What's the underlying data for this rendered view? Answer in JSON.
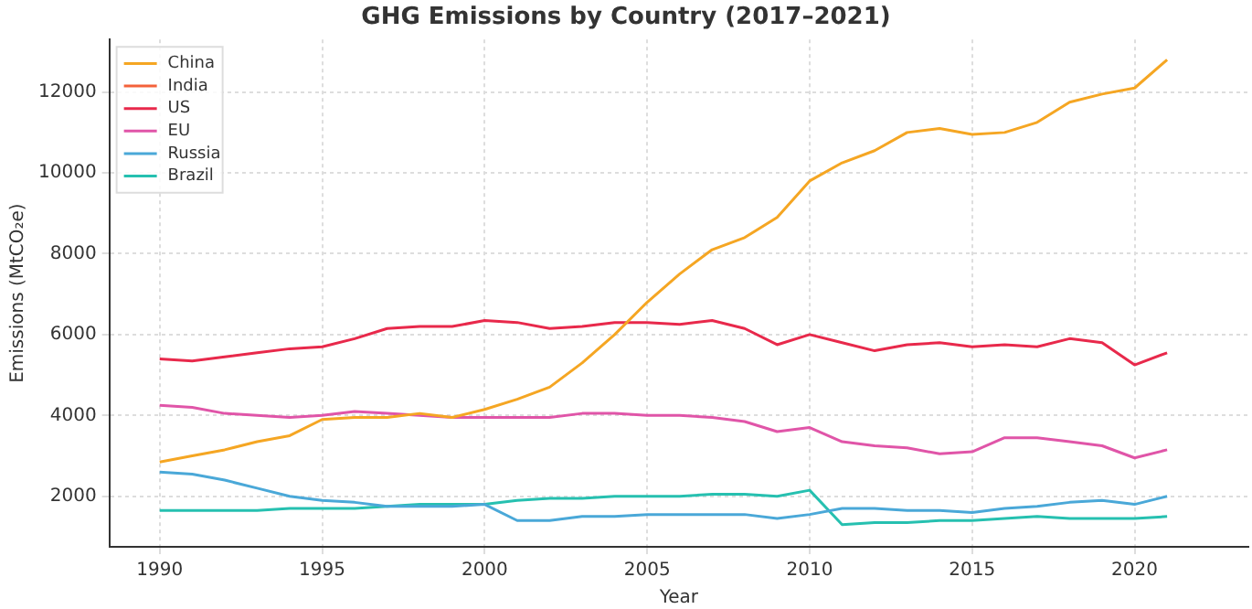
{
  "chart_data": {
    "type": "line",
    "title": "GHG Emissions by Country (2017–2021)",
    "xlabel": "Year",
    "ylabel": "Emissions (MtCO₂e)",
    "x": [
      1990,
      1991,
      1992,
      1993,
      1994,
      1995,
      1996,
      1997,
      1998,
      1999,
      2000,
      2001,
      2002,
      2003,
      2004,
      2005,
      2006,
      2007,
      2008,
      2009,
      2010,
      2011,
      2012,
      2013,
      2014,
      2015,
      2016,
      2017,
      2018,
      2019,
      2020,
      2021
    ],
    "xlim": [
      1988.45,
      2023.5
    ],
    "xticks": [
      1990,
      1995,
      2000,
      2005,
      2010,
      2015,
      2020
    ],
    "ylim": [
      750,
      13300
    ],
    "yticks": [
      2000,
      4000,
      6000,
      8000,
      10000,
      12000
    ],
    "grid": true,
    "legend": "top left",
    "line_style": "solid",
    "marker": "none",
    "series": [
      {
        "name": "China",
        "color": "#f5a623",
        "values": [
          2850,
          3000,
          3150,
          3350,
          3500,
          3900,
          3950,
          3950,
          4050,
          3950,
          4150,
          4400,
          4700,
          5300,
          6000,
          6800,
          7500,
          8100,
          8400,
          8900,
          9800,
          10250,
          10550,
          11000,
          11100,
          10950,
          11000,
          11250,
          11750,
          11950,
          12100,
          12800
        ]
      },
      {
        "name": "India",
        "color": "#f4623a",
        "values": [
          null,
          null,
          null,
          null,
          null,
          null,
          null,
          null,
          null,
          null,
          null,
          null,
          null,
          null,
          null,
          null,
          null,
          null,
          null,
          null,
          null,
          null,
          null,
          null,
          null,
          null,
          null,
          null,
          null,
          null,
          null,
          null
        ]
      },
      {
        "name": "US",
        "color": "#e8294b",
        "values": [
          5400,
          5350,
          5450,
          5550,
          5650,
          5700,
          5900,
          6150,
          6200,
          6200,
          6350,
          6300,
          6150,
          6200,
          6300,
          6300,
          6250,
          6350,
          6150,
          5750,
          6000,
          5800,
          5600,
          5750,
          5800,
          5700,
          5750,
          5700,
          5900,
          5800,
          5250,
          5550
        ]
      },
      {
        "name": "EU",
        "color": "#e055a8",
        "values": [
          4250,
          4200,
          4050,
          4000,
          3950,
          4000,
          4100,
          4050,
          4000,
          3950,
          3950,
          3950,
          3950,
          4050,
          4050,
          4000,
          4000,
          3950,
          3850,
          3600,
          3700,
          3350,
          3250,
          3200,
          3050,
          3100,
          3450,
          3450,
          3350,
          3250,
          2950,
          3150
        ]
      },
      {
        "name": "Russia",
        "color": "#4aa8d8",
        "values": [
          2600,
          2550,
          2400,
          2200,
          2000,
          1900,
          1850,
          1750,
          1750,
          1750,
          1800,
          1400,
          1400,
          1500,
          1500,
          1550,
          1550,
          1550,
          1550,
          1450,
          1550,
          1700,
          1700,
          1650,
          1650,
          1600,
          1700,
          1750,
          1850,
          1900,
          1800,
          2000
        ]
      },
      {
        "name": "Brazil",
        "color": "#26c0b0",
        "values": [
          1650,
          1650,
          1650,
          1650,
          1700,
          1700,
          1700,
          1750,
          1800,
          1800,
          1800,
          1900,
          1950,
          1950,
          2000,
          2000,
          2000,
          2050,
          2050,
          2000,
          2150,
          1300,
          1350,
          1350,
          1400,
          1400,
          1450,
          1500,
          1450,
          1450,
          1450,
          1500
        ]
      }
    ]
  }
}
